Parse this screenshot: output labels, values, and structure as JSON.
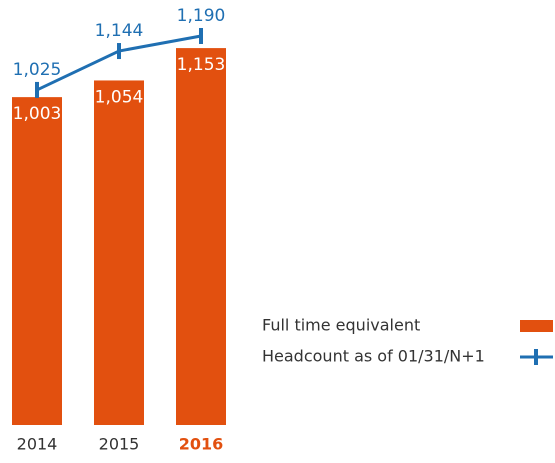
{
  "chart_data": {
    "type": "bar",
    "categories": [
      "2014",
      "2015",
      "2016"
    ],
    "series": [
      {
        "name": "Full time equivalent",
        "type": "bar",
        "color": "#e2500f",
        "values": [
          1003,
          1054,
          1153
        ],
        "value_labels": [
          "1,003",
          "1,054",
          "1,153"
        ]
      },
      {
        "name": "Headcount as of 01/31/N+1",
        "type": "line",
        "color": "#1f6fb2",
        "values": [
          1025,
          1144,
          1190
        ],
        "value_labels": [
          "1,025",
          "1,144",
          "1,190"
        ]
      }
    ]
  }
}
